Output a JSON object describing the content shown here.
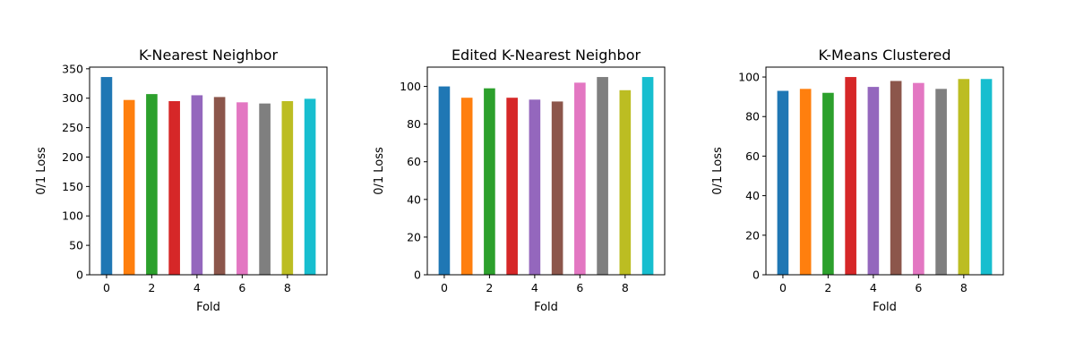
{
  "figure": {
    "background": "#ffffff"
  },
  "chart_data": [
    {
      "type": "bar",
      "title": "K-Nearest Neighbor",
      "xlabel": "Fold",
      "ylabel": "0/1 Loss",
      "categories": [
        0,
        1,
        2,
        3,
        4,
        5,
        6,
        7,
        8,
        9
      ],
      "values": [
        336,
        297,
        307,
        295,
        305,
        302,
        293,
        291,
        295,
        299
      ],
      "colors": [
        "#1f77b4",
        "#ff7f0e",
        "#2ca02c",
        "#d62728",
        "#9467bd",
        "#8c564b",
        "#e377c2",
        "#7f7f7f",
        "#bcbd22",
        "#17becf"
      ],
      "xlim": [
        -0.75,
        9.75
      ],
      "ylim": [
        0,
        352.8
      ],
      "xticks": [
        0,
        2,
        4,
        6,
        8
      ],
      "yticks": [
        0,
        50,
        100,
        150,
        200,
        250,
        300,
        350
      ],
      "grid": false
    },
    {
      "type": "bar",
      "title": "Edited K-Nearest Neighbor",
      "xlabel": "Fold",
      "ylabel": "0/1 Loss",
      "categories": [
        0,
        1,
        2,
        3,
        4,
        5,
        6,
        7,
        8,
        9
      ],
      "values": [
        100,
        94,
        99,
        94,
        93,
        92,
        102,
        105,
        98,
        105
      ],
      "colors": [
        "#1f77b4",
        "#ff7f0e",
        "#2ca02c",
        "#d62728",
        "#9467bd",
        "#8c564b",
        "#e377c2",
        "#7f7f7f",
        "#bcbd22",
        "#17becf"
      ],
      "xlim": [
        -0.75,
        9.75
      ],
      "ylim": [
        0,
        110.25
      ],
      "xticks": [
        0,
        2,
        4,
        6,
        8
      ],
      "yticks": [
        0,
        20,
        40,
        60,
        80,
        100
      ],
      "grid": false
    },
    {
      "type": "bar",
      "title": "K-Means Clustered",
      "xlabel": "Fold",
      "ylabel": "0/1 Loss",
      "categories": [
        0,
        1,
        2,
        3,
        4,
        5,
        6,
        7,
        8,
        9
      ],
      "values": [
        93,
        94,
        92,
        100,
        95,
        98,
        97,
        94,
        99,
        99
      ],
      "colors": [
        "#1f77b4",
        "#ff7f0e",
        "#2ca02c",
        "#d62728",
        "#9467bd",
        "#8c564b",
        "#e377c2",
        "#7f7f7f",
        "#bcbd22",
        "#17becf"
      ],
      "xlim": [
        -0.75,
        9.75
      ],
      "ylim": [
        0,
        105
      ],
      "xticks": [
        0,
        2,
        4,
        6,
        8
      ],
      "yticks": [
        0,
        20,
        40,
        60,
        80,
        100
      ],
      "grid": false
    }
  ]
}
